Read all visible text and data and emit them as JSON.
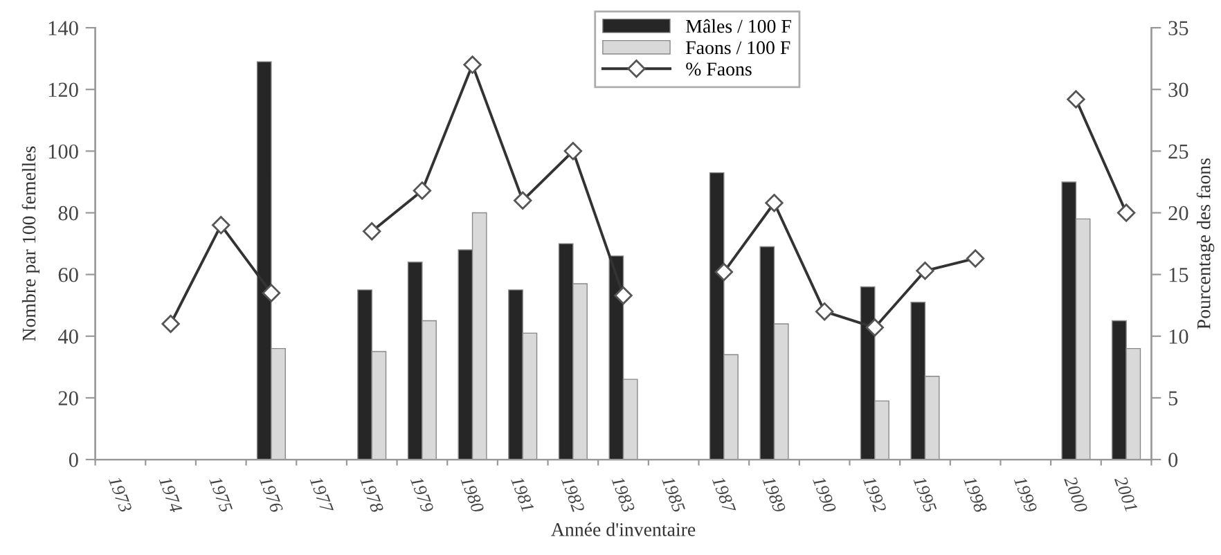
{
  "chart_data": {
    "type": "bar",
    "xlabel": "Année d'inventaire",
    "ylabel": "Nombre par 100 femelles",
    "y2label": "Pourcentage des faons",
    "categories": [
      "1973",
      "1974",
      "1975",
      "1976",
      "1977",
      "1978",
      "1979",
      "1980",
      "1981",
      "1982",
      "1983",
      "1985",
      "1987",
      "1989",
      "1990",
      "1992",
      "1995",
      "1998",
      "1999",
      "2000",
      "2001"
    ],
    "series": [
      {
        "name": "Mâles / 100 F",
        "color": "#262626",
        "values": [
          null,
          null,
          null,
          129,
          null,
          55,
          64,
          68,
          55,
          70,
          66,
          null,
          93,
          69,
          null,
          56,
          51,
          null,
          null,
          90,
          45
        ]
      },
      {
        "name": "Faons / 100 F",
        "color": "#d9d9d9",
        "values": [
          null,
          null,
          null,
          36,
          null,
          35,
          45,
          80,
          41,
          57,
          26,
          null,
          34,
          44,
          null,
          19,
          27,
          null,
          null,
          78,
          36
        ]
      },
      {
        "name": "% Faons",
        "type": "line",
        "axis": "y2",
        "color": "#333333",
        "marker": "diamond",
        "values": [
          null,
          11,
          19,
          13.5,
          null,
          18.5,
          21.8,
          32,
          21,
          25,
          13.3,
          null,
          15.2,
          20.8,
          12,
          10.7,
          15.3,
          16.3,
          null,
          29.2,
          20
        ]
      }
    ],
    "ylim": [
      0,
      140
    ],
    "yticks": [
      0,
      20,
      40,
      60,
      80,
      100,
      120,
      140
    ],
    "y2lim": [
      0,
      35
    ],
    "y2ticks": [
      0,
      5,
      10,
      15,
      20,
      25,
      30,
      35
    ],
    "grid": false,
    "legend": "top"
  }
}
